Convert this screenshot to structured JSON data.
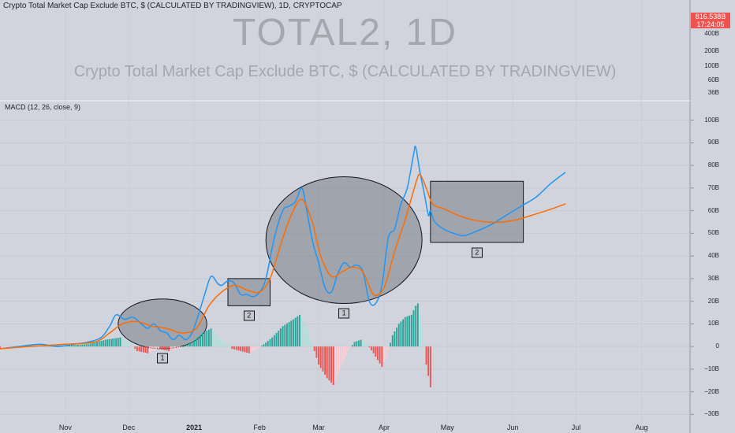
{
  "header": {
    "symbol_line": "Crypto Total Market Cap Exclude BTC, $ (CALCULATED BY TRADINGVIEW), 1D, CRYPTOCAP"
  },
  "watermark": {
    "title": "TOTAL2, 1D",
    "subtitle": "Crypto Total Market Cap Exclude BTC, $ (CALCULATED BY TRADINGVIEW)"
  },
  "price_badge": {
    "price": "816.538B",
    "countdown": "17:24:05"
  },
  "indicator": {
    "label": "MACD (12, 26, close, 9)"
  },
  "annotations": [
    {
      "label": "1"
    },
    {
      "label": "2"
    },
    {
      "label": "1"
    },
    {
      "label": "2"
    }
  ],
  "colors": {
    "macd": "#2196f3",
    "signal": "#ff6d00",
    "hist_up_strong": "#26a69a",
    "hist_up_weak": "#b2dfdb",
    "hist_down_strong": "#ef5350",
    "hist_down_weak": "#ffcdd2",
    "price_badge": "#ef5350",
    "background": "#d1d4dc"
  },
  "chart_data": [
    {
      "type": "line",
      "title": "TOTAL2, 1D",
      "subtitle": "Crypto Total Market Cap Exclude BTC, $ (CALCULATED BY TRADINGVIEW)",
      "price_axis_ticks": [
        "400B",
        "200B",
        "100B",
        "60B",
        "36B"
      ],
      "last_price": "816.538B"
    },
    {
      "type": "line",
      "title": "MACD (12, 26, close, 9)",
      "y_ticks": [
        {
          "v": 100,
          "label": "100B"
        },
        {
          "v": 90,
          "label": "90B"
        },
        {
          "v": 80,
          "label": "80B"
        },
        {
          "v": 70,
          "label": "70B"
        },
        {
          "v": 60,
          "label": "60B"
        },
        {
          "v": 50,
          "label": "50B"
        },
        {
          "v": 40,
          "label": "40B"
        },
        {
          "v": 30,
          "label": "30B"
        },
        {
          "v": 20,
          "label": "20B"
        },
        {
          "v": 10,
          "label": "10B"
        },
        {
          "v": 0,
          "label": "0"
        },
        {
          "v": -10,
          "label": "−10B"
        },
        {
          "v": -20,
          "label": "−20B"
        },
        {
          "v": -30,
          "label": "−30B"
        }
      ],
      "ylim": [
        -33,
        103
      ],
      "x_ticks": [
        {
          "date": "2020-11-01",
          "label": "Nov",
          "bold": false
        },
        {
          "date": "2020-12-01",
          "label": "Dec",
          "bold": false
        },
        {
          "date": "2021-01-01",
          "label": "2021",
          "bold": true
        },
        {
          "date": "2021-02-01",
          "label": "Feb",
          "bold": false
        },
        {
          "date": "2021-03-01",
          "label": "Mar",
          "bold": false
        },
        {
          "date": "2021-04-01",
          "label": "Apr",
          "bold": false
        },
        {
          "date": "2021-05-01",
          "label": "May",
          "bold": false
        },
        {
          "date": "2021-06-01",
          "label": "Jun",
          "bold": false
        },
        {
          "date": "2021-07-01",
          "label": "Jul",
          "bold": false
        },
        {
          "date": "2021-08-01",
          "label": "Aug",
          "bold": false
        }
      ],
      "xlim": [
        "2020-10-01",
        "2021-08-24"
      ],
      "histogram_end": "2021-04-23",
      "series": [
        {
          "name": "MACD",
          "points": [
            [
              "2020-10-01",
              -1
            ],
            [
              "2020-10-10",
              0
            ],
            [
              "2020-10-20",
              1
            ],
            [
              "2020-10-28",
              0
            ],
            [
              "2020-11-05",
              1
            ],
            [
              "2020-11-12",
              2
            ],
            [
              "2020-11-18",
              4
            ],
            [
              "2020-11-22",
              9
            ],
            [
              "2020-11-25",
              14
            ],
            [
              "2020-11-29",
              12
            ],
            [
              "2020-12-03",
              13
            ],
            [
              "2020-12-07",
              10
            ],
            [
              "2020-12-10",
              8
            ],
            [
              "2020-12-13",
              10
            ],
            [
              "2020-12-16",
              7
            ],
            [
              "2020-12-19",
              6
            ],
            [
              "2020-12-22",
              3
            ],
            [
              "2020-12-25",
              5
            ],
            [
              "2020-12-28",
              3
            ],
            [
              "2020-12-31",
              6
            ],
            [
              "2021-01-03",
              14
            ],
            [
              "2021-01-06",
              23
            ],
            [
              "2021-01-09",
              31
            ],
            [
              "2021-01-12",
              28
            ],
            [
              "2021-01-14",
              27
            ],
            [
              "2021-01-17",
              29
            ],
            [
              "2021-01-20",
              28
            ],
            [
              "2021-01-23",
              23
            ],
            [
              "2021-01-26",
              23
            ],
            [
              "2021-01-29",
              22
            ],
            [
              "2021-02-01",
              24
            ],
            [
              "2021-02-04",
              30
            ],
            [
              "2021-02-08",
              48
            ],
            [
              "2021-02-12",
              60
            ],
            [
              "2021-02-15",
              62
            ],
            [
              "2021-02-18",
              64
            ],
            [
              "2021-02-21",
              70
            ],
            [
              "2021-02-23",
              62
            ],
            [
              "2021-02-26",
              47
            ],
            [
              "2021-03-01",
              37
            ],
            [
              "2021-03-04",
              26
            ],
            [
              "2021-03-07",
              24
            ],
            [
              "2021-03-10",
              32
            ],
            [
              "2021-03-13",
              37
            ],
            [
              "2021-03-16",
              35
            ],
            [
              "2021-03-19",
              36
            ],
            [
              "2021-03-22",
              33
            ],
            [
              "2021-03-25",
              20
            ],
            [
              "2021-03-28",
              19
            ],
            [
              "2021-03-31",
              27
            ],
            [
              "2021-04-03",
              48
            ],
            [
              "2021-04-06",
              52
            ],
            [
              "2021-04-09",
              63
            ],
            [
              "2021-04-12",
              70
            ],
            [
              "2021-04-15",
              85
            ],
            [
              "2021-04-16",
              88
            ],
            [
              "2021-04-18",
              77
            ],
            [
              "2021-04-20",
              68
            ],
            [
              "2021-04-22",
              58
            ],
            [
              "2021-04-23",
              60
            ],
            [
              "2021-04-25",
              55
            ],
            [
              "2021-04-29",
              52
            ],
            [
              "2021-05-04",
              50
            ],
            [
              "2021-05-09",
              49
            ],
            [
              "2021-05-15",
              51
            ],
            [
              "2021-05-22",
              54
            ],
            [
              "2021-05-29",
              58
            ],
            [
              "2021-06-05",
              62
            ],
            [
              "2021-06-12",
              66
            ],
            [
              "2021-06-19",
              72
            ],
            [
              "2021-06-26",
              77
            ]
          ]
        },
        {
          "name": "Signal",
          "points": [
            [
              "2020-10-01",
              -1
            ],
            [
              "2020-10-15",
              0
            ],
            [
              "2020-11-01",
              1
            ],
            [
              "2020-11-15",
              2
            ],
            [
              "2020-11-22",
              6
            ],
            [
              "2020-11-28",
              10
            ],
            [
              "2020-12-05",
              11
            ],
            [
              "2020-12-12",
              9
            ],
            [
              "2020-12-19",
              8
            ],
            [
              "2020-12-26",
              6
            ],
            [
              "2021-01-02",
              8
            ],
            [
              "2021-01-08",
              18
            ],
            [
              "2021-01-14",
              24
            ],
            [
              "2021-01-20",
              27
            ],
            [
              "2021-01-26",
              25
            ],
            [
              "2021-02-01",
              24
            ],
            [
              "2021-02-06",
              30
            ],
            [
              "2021-02-11",
              45
            ],
            [
              "2021-02-16",
              58
            ],
            [
              "2021-02-21",
              65
            ],
            [
              "2021-02-26",
              55
            ],
            [
              "2021-03-02",
              40
            ],
            [
              "2021-03-07",
              31
            ],
            [
              "2021-03-12",
              33
            ],
            [
              "2021-03-17",
              35
            ],
            [
              "2021-03-22",
              33
            ],
            [
              "2021-03-27",
              23
            ],
            [
              "2021-04-01",
              26
            ],
            [
              "2021-04-06",
              42
            ],
            [
              "2021-04-11",
              56
            ],
            [
              "2021-04-16",
              72
            ],
            [
              "2021-04-18",
              76
            ],
            [
              "2021-04-21",
              70
            ],
            [
              "2021-04-24",
              63
            ],
            [
              "2021-04-29",
              61
            ],
            [
              "2021-05-06",
              58
            ],
            [
              "2021-05-13",
              56
            ],
            [
              "2021-05-20",
              55
            ],
            [
              "2021-05-27",
              55
            ],
            [
              "2021-06-03",
              56
            ],
            [
              "2021-06-10",
              58
            ],
            [
              "2021-06-17",
              60
            ],
            [
              "2021-06-26",
              63
            ]
          ]
        }
      ],
      "histogram": [
        [
          "2020-10-01",
          -1
        ],
        [
          "2020-10-15",
          0.5
        ],
        [
          "2020-11-01",
          0.5
        ],
        [
          "2020-11-12",
          1
        ],
        [
          "2020-11-20",
          3
        ],
        [
          "2020-11-27",
          4
        ],
        [
          "2020-12-02",
          1
        ],
        [
          "2020-12-05",
          -2
        ],
        [
          "2020-12-10",
          -3
        ],
        [
          "2020-12-15",
          -1
        ],
        [
          "2020-12-20",
          -2
        ],
        [
          "2020-12-25",
          -1
        ],
        [
          "2020-12-31",
          2
        ],
        [
          "2021-01-05",
          6
        ],
        [
          "2021-01-09",
          8
        ],
        [
          "2021-01-14",
          3
        ],
        [
          "2021-01-17",
          1
        ],
        [
          "2021-01-19",
          -1
        ],
        [
          "2021-01-23",
          -2
        ],
        [
          "2021-01-27",
          -3
        ],
        [
          "2021-01-31",
          -1
        ],
        [
          "2021-02-03",
          1
        ],
        [
          "2021-02-07",
          4
        ],
        [
          "2021-02-12",
          9
        ],
        [
          "2021-02-17",
          12
        ],
        [
          "2021-02-20",
          14
        ],
        [
          "2021-02-23",
          10
        ],
        [
          "2021-02-27",
          -2
        ],
        [
          "2021-03-01",
          -8
        ],
        [
          "2021-03-05",
          -14
        ],
        [
          "2021-03-08",
          -17
        ],
        [
          "2021-03-12",
          -8
        ],
        [
          "2021-03-15",
          -2
        ],
        [
          "2021-03-18",
          2
        ],
        [
          "2021-03-21",
          3
        ],
        [
          "2021-03-24",
          1
        ],
        [
          "2021-03-27",
          -3
        ],
        [
          "2021-03-31",
          -9
        ],
        [
          "2021-04-02",
          -5
        ],
        [
          "2021-04-05",
          5
        ],
        [
          "2021-04-08",
          10
        ],
        [
          "2021-04-11",
          13
        ],
        [
          "2021-04-14",
          14
        ],
        [
          "2021-04-16",
          18
        ],
        [
          "2021-04-17",
          19
        ],
        [
          "2021-04-19",
          10
        ],
        [
          "2021-04-21",
          -8
        ],
        [
          "2021-04-23",
          -18
        ]
      ],
      "annotations": [
        {
          "shape": "ellipse",
          "label": "1",
          "center": [
            "2020-12-17",
            10
          ],
          "date_radius": 21,
          "value_radius": 11
        },
        {
          "shape": "rectangle",
          "label": "2",
          "x0": "2021-01-17",
          "x1": "2021-02-06",
          "y0": 18,
          "y1": 30
        },
        {
          "shape": "ellipse",
          "label": "1",
          "center": [
            "2021-03-13",
            47
          ],
          "date_radius": 37,
          "value_radius": 28
        },
        {
          "shape": "rectangle",
          "label": "2",
          "x0": "2021-04-23",
          "x1": "2021-06-06",
          "y0": 46,
          "y1": 73
        }
      ]
    }
  ]
}
